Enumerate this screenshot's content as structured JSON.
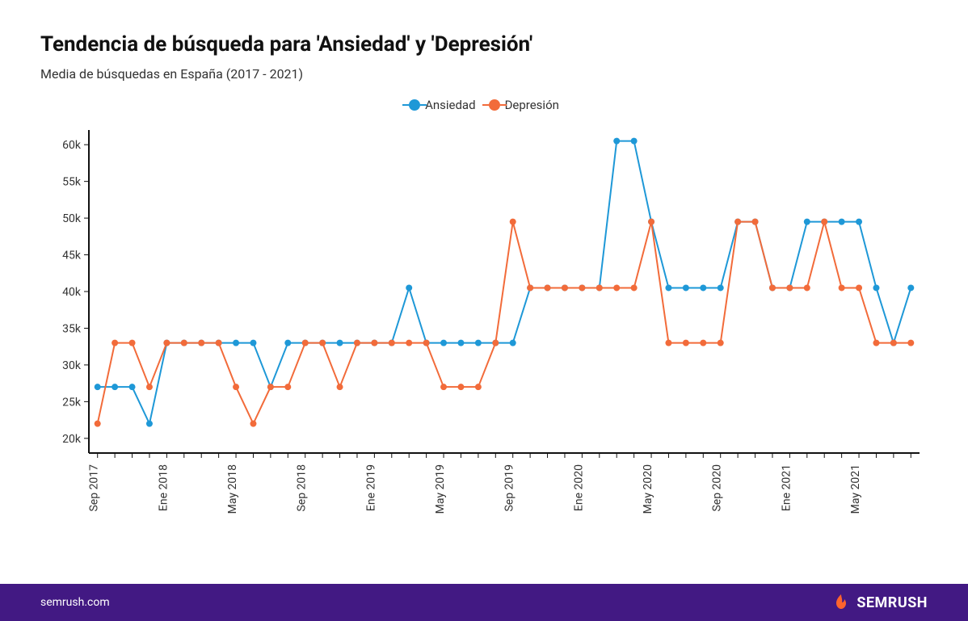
{
  "title": "Tendencia de búsqueda para 'Ansiedad' y 'Depresión'",
  "subtitle": "Media de búsquedas en España (2017 - 2021)",
  "footer": {
    "url": "semrush.com",
    "brand": "SEMRUSH"
  },
  "chart": {
    "type": "line",
    "background_color": "#ffffff",
    "axis_color": "#111111",
    "axis_width": 2,
    "text_color": "#333333",
    "label_fontsize": 14,
    "ylim": [
      18000,
      62000
    ],
    "yticks": [
      20000,
      25000,
      30000,
      35000,
      40000,
      45000,
      50000,
      55000,
      60000
    ],
    "ytick_labels": [
      "20k",
      "25k",
      "30k",
      "35k",
      "40k",
      "45k",
      "50k",
      "55k",
      "60k"
    ],
    "x_categories": [
      "Sep 2017",
      "",
      "",
      "",
      "Ene 2018",
      "",
      "",
      "",
      "May 2018",
      "",
      "",
      "",
      "Sep 2018",
      "",
      "",
      "",
      "Ene 2019",
      "",
      "",
      "",
      "May 2019",
      "",
      "",
      "",
      "Sep 2019",
      "",
      "",
      "",
      "Ene 2020",
      "",
      "",
      "",
      "May 2020",
      "",
      "",
      "",
      "Sep 2020",
      "",
      "",
      "",
      "Ene 2021",
      "",
      "",
      "",
      "May 2021",
      "",
      "",
      ""
    ],
    "x_tick_every": 4,
    "legend": {
      "position": "top-center"
    },
    "line_width": 2,
    "marker_radius": 4,
    "series": [
      {
        "name": "Ansiedad",
        "color": "#1e98d7",
        "values": [
          27000,
          27000,
          27000,
          22000,
          33000,
          33000,
          33000,
          33000,
          33000,
          33000,
          27000,
          33000,
          33000,
          33000,
          33000,
          33000,
          33000,
          33000,
          40500,
          33000,
          33000,
          33000,
          33000,
          33000,
          33000,
          40500,
          40500,
          40500,
          40500,
          40500,
          60500,
          60500,
          49500,
          40500,
          40500,
          40500,
          40500,
          49500,
          49500,
          40500,
          40500,
          49500,
          49500,
          49500,
          49500,
          40500,
          33000,
          40500
        ]
      },
      {
        "name": "Depresión",
        "color": "#f26b3a",
        "values": [
          22000,
          33000,
          33000,
          27000,
          33000,
          33000,
          33000,
          33000,
          27000,
          22000,
          27000,
          27000,
          33000,
          33000,
          27000,
          33000,
          33000,
          33000,
          33000,
          33000,
          27000,
          27000,
          27000,
          33000,
          49500,
          40500,
          40500,
          40500,
          40500,
          40500,
          40500,
          40500,
          49500,
          33000,
          33000,
          33000,
          33000,
          49500,
          49500,
          40500,
          40500,
          40500,
          49500,
          40500,
          40500,
          33000,
          33000,
          33000
        ]
      }
    ]
  }
}
